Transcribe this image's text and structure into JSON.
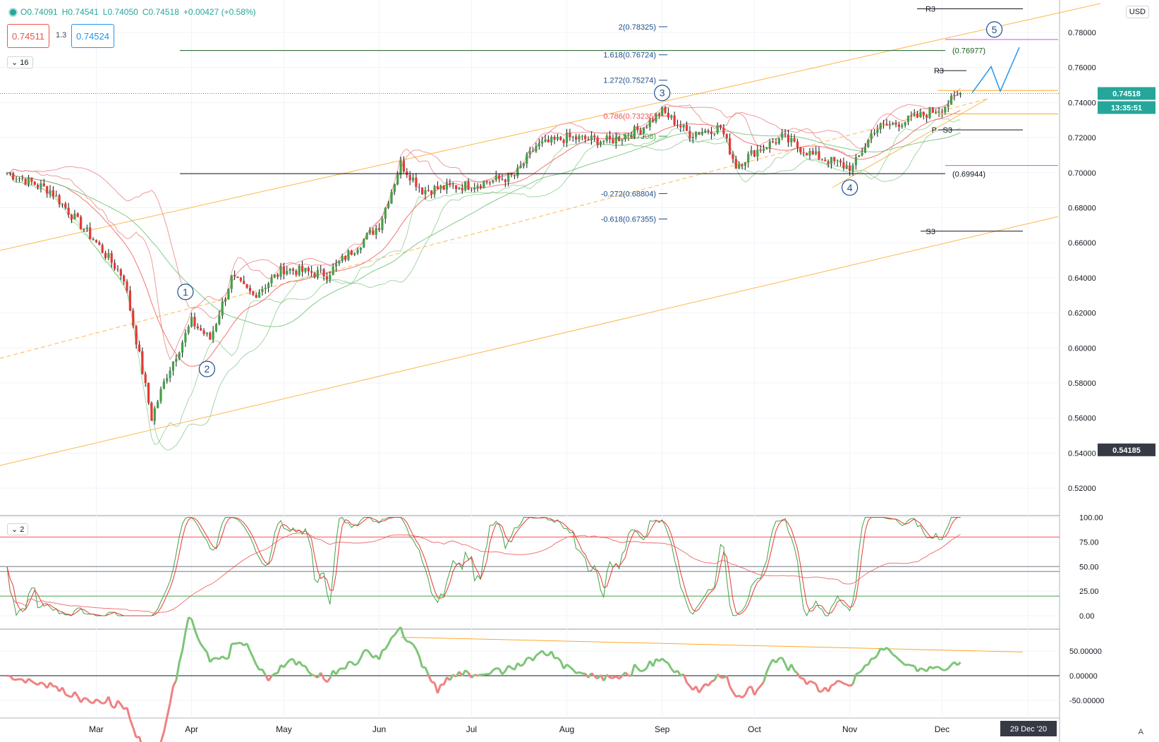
{
  "header": {
    "open": "O0.74091",
    "high": "H0.74541",
    "low": "L0.74050",
    "close": "C0.74518",
    "change": "+0.00427 (+0.58%)",
    "sell_quote": "0.74511",
    "spread": "1.3",
    "buy_quote": "0.74524",
    "main_fold": "16",
    "osc_fold": "2",
    "currency": "USD",
    "auto_label": "A"
  },
  "chart_data": {
    "type": "candlestick",
    "price_axis_ticks": [
      "0.78000",
      "0.76000",
      "0.74000",
      "0.72000",
      "0.70000",
      "0.68000",
      "0.66000",
      "0.64000",
      "0.62000",
      "0.60000",
      "0.58000",
      "0.56000",
      "0.54000",
      "0.52000"
    ],
    "stoch_axis_ticks": [
      "100.00",
      "75.00",
      "50.00",
      "25.00",
      "0.00"
    ],
    "momentum_axis_ticks": [
      "50.00000",
      "0.00000",
      "-50.00000"
    ],
    "x_axis_ticks": [
      "Mar",
      "Apr",
      "May",
      "Jun",
      "Jul",
      "Aug",
      "Sep",
      "Oct",
      "Nov",
      "Dec"
    ],
    "current_price_label": "0.74518",
    "countdown_label": "13:35:51",
    "crosshair_price_label": "0.54185",
    "crosshair_date_label": "29 Dec '20",
    "close_path": [
      [
        "Feb 01",
        0.7
      ],
      [
        "Feb 15",
        0.69
      ],
      [
        "Mar 01",
        0.66
      ],
      [
        "Mar 10",
        0.64
      ],
      [
        "Mar 19",
        0.56
      ],
      [
        "Mar 24",
        0.585
      ],
      [
        "Apr 01",
        0.615
      ],
      [
        "Apr 07",
        0.605
      ],
      [
        "Apr 14",
        0.64
      ],
      [
        "Apr 21",
        0.63
      ],
      [
        "May 01",
        0.645
      ],
      [
        "May 15",
        0.642
      ],
      [
        "Jun 01",
        0.67
      ],
      [
        "Jun 08",
        0.705
      ],
      [
        "Jun 15",
        0.69
      ],
      [
        "Jul 01",
        0.693
      ],
      [
        "Jul 15",
        0.698
      ],
      [
        "Jul 22",
        0.715
      ],
      [
        "Aug 01",
        0.72
      ],
      [
        "Aug 15",
        0.718
      ],
      [
        "Aug 25",
        0.725
      ],
      [
        "Sep 01",
        0.735
      ],
      [
        "Sep 10",
        0.722
      ],
      [
        "Sep 20",
        0.726
      ],
      [
        "Sep 25",
        0.704
      ],
      [
        "Oct 01",
        0.712
      ],
      [
        "Oct 10",
        0.72
      ],
      [
        "Oct 20",
        0.71
      ],
      [
        "Oct 30",
        0.704
      ],
      [
        "Nov 02",
        0.703
      ],
      [
        "Nov 09",
        0.725
      ],
      [
        "Nov 20",
        0.73
      ],
      [
        "Dec 01",
        0.737
      ],
      [
        "Dec 07",
        0.745
      ]
    ],
    "horizontal_levels": [
      {
        "label": "R3",
        "value": 0.7935
      },
      {
        "label": "R3",
        "value": 0.7582
      },
      {
        "label": "P",
        "value": 0.7244
      },
      {
        "label": "S3",
        "value": 0.7244
      },
      {
        "label": "S3",
        "value": 0.6666
      },
      {
        "label": "(0.76977)",
        "value": 0.7697
      },
      {
        "label": "(0.69944)",
        "value": 0.6994
      }
    ],
    "fib_levels": [
      {
        "label": "2(0.78325)",
        "value": 0.78325
      },
      {
        "label": "1.618(0.76724)",
        "value": 0.76724
      },
      {
        "label": "1.272(0.75274)",
        "value": 0.75274
      },
      {
        "label": "0.786(0.73235)",
        "value": 0.73235
      },
      {
        "label": "0.5(0.7208)",
        "value": 0.7208
      },
      {
        "label": "-0.272(0.68804)",
        "value": 0.68804
      },
      {
        "label": "-0.618(0.67355)",
        "value": 0.67355
      }
    ],
    "wave_labels": [
      {
        "label": "1",
        "date": "Mar 30",
        "value": 0.632
      },
      {
        "label": "2",
        "date": "Apr 06",
        "value": 0.588
      },
      {
        "label": "3",
        "date": "Sep 01",
        "value": 0.7455
      },
      {
        "label": "4",
        "date": "Nov 01",
        "value": 0.6915
      },
      {
        "label": "5",
        "date": "Dec 18",
        "value": 0.7817
      }
    ],
    "stoch_levels": [
      80,
      50,
      45,
      20
    ],
    "momentum_zero": 0
  }
}
